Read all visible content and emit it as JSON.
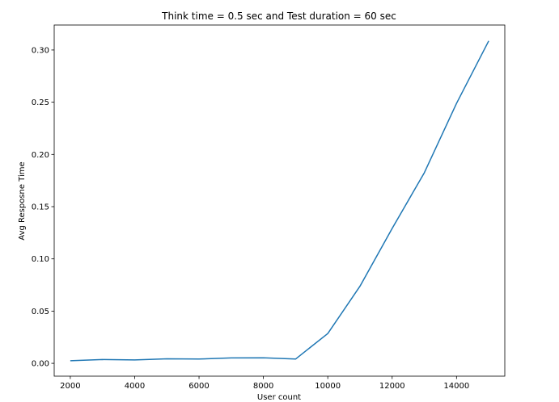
{
  "chart_data": {
    "type": "line",
    "title": "Think time = 0.5 sec and Test duration = 60 sec",
    "xlabel": "User count",
    "ylabel": "Avg Resposne Time",
    "xlim": [
      1500,
      15500
    ],
    "ylim": [
      -0.0123,
      0.3239
    ],
    "xticks": [
      2000,
      4000,
      6000,
      8000,
      10000,
      12000,
      14000
    ],
    "xtick_labels": [
      "2000",
      "4000",
      "6000",
      "8000",
      "10000",
      "12000",
      "14000"
    ],
    "yticks": [
      0.0,
      0.05,
      0.1,
      0.15,
      0.2,
      0.25,
      0.3
    ],
    "ytick_labels": [
      "0.00",
      "0.05",
      "0.10",
      "0.15",
      "0.20",
      "0.25",
      "0.30"
    ],
    "grid": false,
    "series": [
      {
        "color": "#1f77b4",
        "x": [
          2000,
          3000,
          4000,
          5000,
          6000,
          7000,
          8000,
          9000,
          10000,
          11000,
          12000,
          13000,
          14000,
          15000
        ],
        "y": [
          0.0025,
          0.0036,
          0.0033,
          0.0043,
          0.0041,
          0.0052,
          0.0053,
          0.0041,
          0.0285,
          0.0738,
          0.1291,
          0.1825,
          0.2489,
          0.3087
        ]
      }
    ]
  }
}
